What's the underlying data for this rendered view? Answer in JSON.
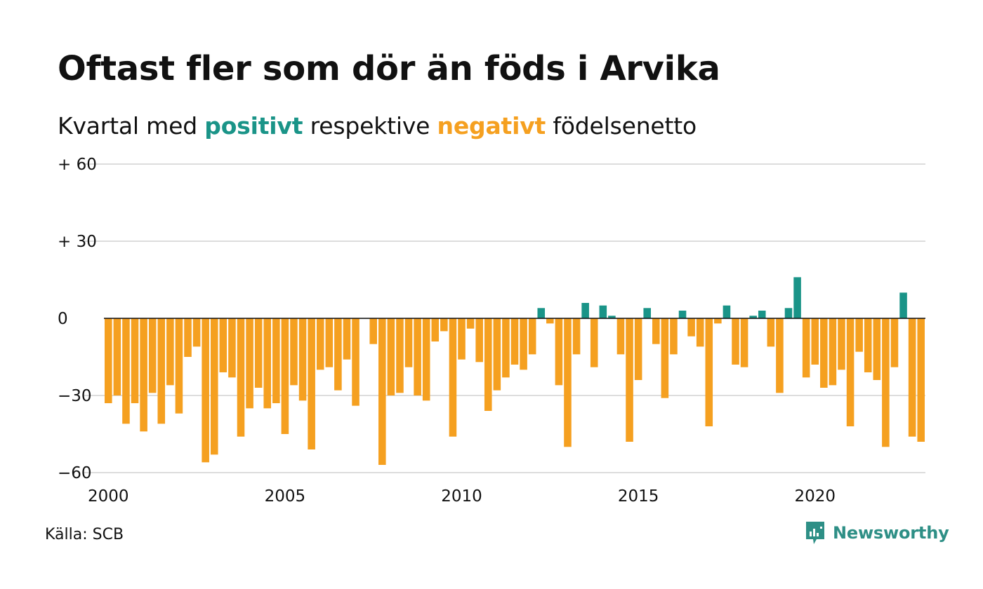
{
  "title": "Oftast fler som dör än föds i Arvika",
  "subtitle": {
    "prefix": "Kvartal med",
    "positive_word": "positivt",
    "middle": "respektive",
    "negative_word": "negativt",
    "suffix": "födelsenetto"
  },
  "source": "Källa: SCB",
  "brand": "Newsworthy",
  "colors": {
    "positive": "#1a9488",
    "negative": "#f5a020",
    "brand": "#2e8f86",
    "grid": "#dddddd",
    "baseline": "#111111"
  },
  "chart_data": {
    "type": "bar",
    "x_start": "2000 Q1",
    "ylim": [
      -60,
      60
    ],
    "yticks": [
      {
        "value": 60,
        "label": "+ 60"
      },
      {
        "value": 30,
        "label": "+ 30"
      },
      {
        "value": 0,
        "label": "0"
      },
      {
        "value": -30,
        "label": "−30"
      },
      {
        "value": -60,
        "label": "−60"
      }
    ],
    "xticks": [
      "2000",
      "2005",
      "2010",
      "2015",
      "2020"
    ],
    "values": [
      -33,
      -30,
      -41,
      -33,
      -44,
      -29,
      -41,
      -26,
      -37,
      -15,
      -11,
      -56,
      -53,
      -21,
      -23,
      -46,
      -35,
      -27,
      -35,
      -33,
      -45,
      -26,
      -32,
      -51,
      -20,
      -19,
      -28,
      -16,
      -34,
      0,
      -10,
      -57,
      -30,
      -29,
      -19,
      -30,
      -32,
      -9,
      -5,
      -46,
      -16,
      -4,
      -17,
      -36,
      -28,
      -23,
      -18,
      -20,
      -14,
      4,
      -2,
      -26,
      -50,
      -14,
      6,
      -19,
      5,
      1,
      -14,
      -48,
      -24,
      4,
      -10,
      -31,
      -14,
      3,
      -7,
      -11,
      -42,
      -2,
      5,
      -18,
      -19,
      1,
      3,
      -11,
      -29,
      4,
      16,
      -23,
      -18,
      -27,
      -26,
      -20,
      -42,
      -13,
      -21,
      -24,
      -50,
      -19,
      10,
      -46,
      -48
    ]
  }
}
